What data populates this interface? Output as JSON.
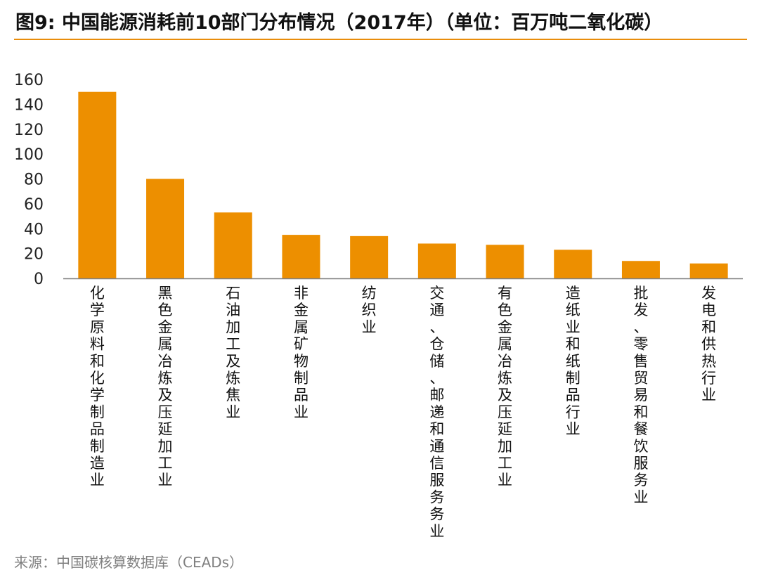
{
  "title": "图9: 中国能源消耗前10部门分布情况（2017年）（单位：百万吨二氧化碳）",
  "source": "来源：中国碳核算数据库（CEADs）",
  "colors": {
    "bar": "#ed8f00",
    "accent_rule": "#e98d0b",
    "axis": "#808080"
  },
  "chart_data": {
    "type": "bar",
    "categories": [
      "化学原料和化学制品制造业",
      "黑色金属冶炼及压延加工业",
      "石油加工及炼焦业",
      "非金属矿物制品业",
      "纺织业",
      "交通、仓储、邮递和通信服务务业",
      "有色金属冶炼及压延加工业",
      "造纸业和纸制品行业",
      "批发、零售贸易和餐饮服务业",
      "发电和供热行业"
    ],
    "values": [
      150,
      80,
      53,
      35,
      34,
      28,
      27,
      23,
      14,
      12
    ],
    "ylim": [
      0,
      160
    ],
    "yticks": [
      0,
      20,
      40,
      60,
      80,
      100,
      120,
      140,
      160
    ],
    "grid": false,
    "legend": "none"
  }
}
